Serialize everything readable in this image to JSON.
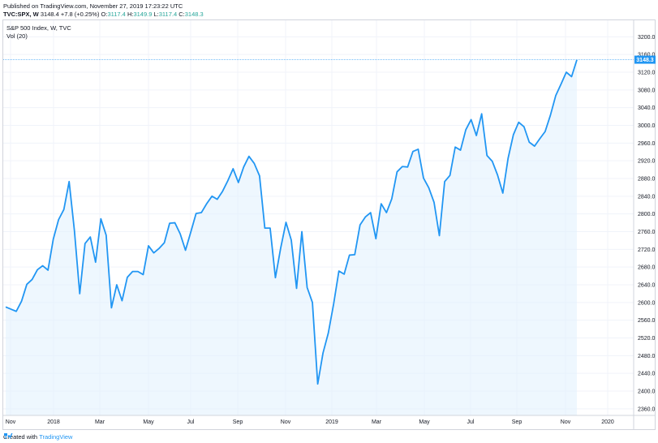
{
  "header": {
    "published": "Published on TradingView.com, November 27, 2019 17:23:22 UTC",
    "symbol": "TVC:SPX, W",
    "last": "3148.4",
    "change": "+7.8 (+0.25%)",
    "o_label": "O:",
    "o_value": "3117.4",
    "h_label": "H:",
    "h_value": "3149.9",
    "l_label": "L:",
    "l_value": "3117.4",
    "c_label": "C:",
    "c_value": "3148.3"
  },
  "legend": {
    "title": "S&P 500 Index, W, TVC",
    "volume": "Vol (20)"
  },
  "footer": {
    "created_with": "Created with",
    "brand": "TradingView",
    "logo_icon": "tradingview-logo-icon"
  },
  "chart_data": {
    "type": "area",
    "title": "S&P 500 Index, W, TVC",
    "xlabel": "",
    "ylabel": "",
    "x_ticks": [
      "Nov",
      "2018",
      "Mar",
      "May",
      "Jul",
      "Sep",
      "Nov",
      "2019",
      "Mar",
      "May",
      "Jul",
      "Sep",
      "Nov",
      "2020"
    ],
    "y_ticks": [
      2360,
      2400,
      2440,
      2480,
      2520,
      2560,
      2600,
      2640,
      2680,
      2720,
      2760,
      2800,
      2840,
      2880,
      2920,
      2960,
      3000,
      3040,
      3080,
      3120,
      3160,
      3200
    ],
    "ylim": [
      2340,
      3220
    ],
    "last_price_label": "3148.3",
    "colors": {
      "line": "#2196f3",
      "fill": "#e3f2fd",
      "price_tag": "#2196f3",
      "axis_text": "#131722"
    },
    "grid": true,
    "series": [
      {
        "values": [
          2590,
          2585,
          2580,
          2603,
          2641,
          2652,
          2674,
          2683,
          2673,
          2743,
          2787,
          2810,
          2873,
          2762,
          2620,
          2733,
          2748,
          2691,
          2789,
          2752,
          2588,
          2640,
          2604,
          2657,
          2670,
          2670,
          2663,
          2728,
          2712,
          2722,
          2735,
          2779,
          2780,
          2755,
          2718,
          2759,
          2801,
          2803,
          2823,
          2840,
          2833,
          2851,
          2875,
          2902,
          2871,
          2906,
          2930,
          2914,
          2886,
          2768,
          2768,
          2656,
          2723,
          2781,
          2741,
          2632,
          2760,
          2634,
          2600,
          2416,
          2486,
          2531,
          2596,
          2671,
          2664,
          2707,
          2708,
          2775,
          2793,
          2803,
          2744,
          2823,
          2803,
          2834,
          2895,
          2907,
          2906,
          2941,
          2946,
          2881,
          2859,
          2826,
          2751,
          2873,
          2887,
          2951,
          2944,
          2990,
          3013,
          2977,
          3026,
          2932,
          2919,
          2888,
          2847,
          2926,
          2979,
          3007,
          2997,
          2962,
          2953,
          2970,
          2986,
          3023,
          3067,
          3093,
          3120,
          3110,
          3148
        ]
      }
    ]
  }
}
